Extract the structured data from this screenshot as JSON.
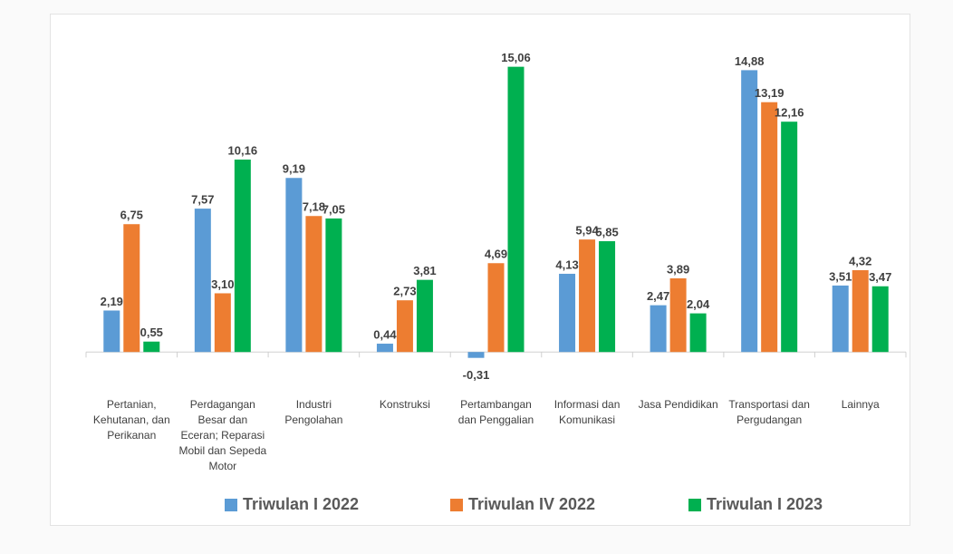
{
  "chart_data": {
    "type": "bar",
    "categories": [
      "Pertanian, Kehutanan, dan Perikanan",
      "Perdagangan Besar dan Eceran; Reparasi Mobil dan Sepeda Motor",
      "Industri Pengolahan",
      "Konstruksi",
      "Pertambangan dan Penggalian",
      "Informasi dan Komunikasi",
      "Jasa Pendidikan",
      "Transportasi dan Pergudangan",
      "Lainnya"
    ],
    "series": [
      {
        "name": "Triwulan I 2022",
        "color": "#5b9bd5",
        "values": [
          2.19,
          7.57,
          9.19,
          0.44,
          -0.31,
          4.13,
          2.47,
          14.88,
          3.51
        ],
        "value_labels": [
          "2,19",
          "7,57",
          "9,19",
          "0,44",
          "-0,31",
          "4,13",
          "2,47",
          "14,88",
          "3,51"
        ]
      },
      {
        "name": "Triwulan IV 2022",
        "color": "#ed7d31",
        "values": [
          6.75,
          3.1,
          7.18,
          2.73,
          4.69,
          5.94,
          3.89,
          13.19,
          4.32
        ],
        "value_labels": [
          "6,75",
          "3,10",
          "7,18",
          "2,73",
          "4,69",
          "5,94",
          "3,89",
          "13,19",
          "4,32"
        ]
      },
      {
        "name": "Triwulan I 2023",
        "color": "#00b050",
        "values": [
          0.55,
          10.16,
          7.05,
          3.81,
          15.06,
          5.85,
          2.04,
          12.16,
          3.47
        ],
        "value_labels": [
          "0,55",
          "10,16",
          "7,05",
          "3,81",
          "15,06",
          "5,85",
          "2,04",
          "12,16",
          "3,47"
        ]
      }
    ],
    "ylim": [
      -2,
      16
    ],
    "legend": "bottom"
  }
}
